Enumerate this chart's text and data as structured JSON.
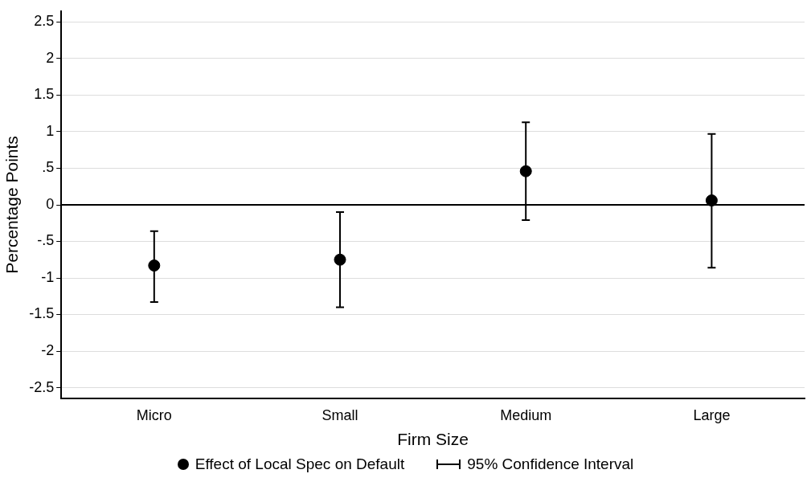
{
  "chart_data": {
    "type": "scatter",
    "xlabel": "Firm Size",
    "ylabel": "Percentage Points",
    "categories": [
      "Micro",
      "Small",
      "Medium",
      "Large"
    ],
    "series": [
      {
        "name": "Effect of Local Spec on Default",
        "color": "#000000",
        "values": [
          -0.83,
          -0.75,
          0.46,
          0.06
        ],
        "errors": [
          [
            -1.33,
            -0.36
          ],
          [
            -1.4,
            -0.1
          ],
          [
            -0.21,
            1.13
          ],
          [
            -0.86,
            0.97
          ]
        ]
      }
    ],
    "ylim": [
      -2.65,
      2.65
    ],
    "yticks": [
      {
        "value": -2.5,
        "label": "-2.5"
      },
      {
        "value": -2,
        "label": "-2"
      },
      {
        "value": -1.5,
        "label": "-1.5"
      },
      {
        "value": -1,
        "label": "-1"
      },
      {
        "value": -0.5,
        "label": "-.5"
      },
      {
        "value": 0,
        "label": "0"
      },
      {
        "value": 0.5,
        "label": ".5"
      },
      {
        "value": 1,
        "label": "1"
      },
      {
        "value": 1.5,
        "label": "1.5"
      },
      {
        "value": 2,
        "label": "2"
      },
      {
        "value": 2.5,
        "label": "2.5"
      }
    ],
    "ref_lines": [
      {
        "axis": "y",
        "value": 0,
        "color": "#000000",
        "line_style": "solid"
      }
    ],
    "annotations": [
      "95% Confidence Interval"
    ],
    "grid": "y",
    "legend": "bottom",
    "marker": "circle"
  }
}
